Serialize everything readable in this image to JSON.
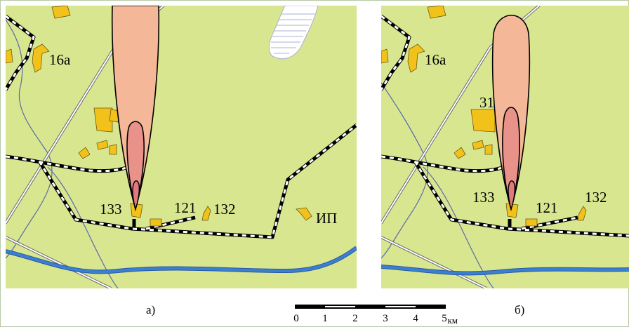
{
  "map_a": {
    "caption": "а)",
    "labels": {
      "site_16a": "16а",
      "site_133": "133",
      "site_121": "121",
      "site_132": "132",
      "site_ip": "ИП"
    }
  },
  "map_b": {
    "caption": "б)",
    "labels": {
      "site_16a": "16а",
      "site_31": "31",
      "site_133": "133",
      "site_121": "121",
      "site_132": "132"
    }
  },
  "scale": {
    "ticks": [
      "0",
      "1",
      "2",
      "3",
      "4",
      "5"
    ],
    "unit": "км"
  },
  "colors": {
    "land": "#d9e690",
    "building": "#f2c21a",
    "river": "#3b7fd0",
    "plume_outer": "#f4b898",
    "plume_mid": "#e9928a",
    "plume_inner": "#e07a7c",
    "lake": "#ffffff"
  }
}
